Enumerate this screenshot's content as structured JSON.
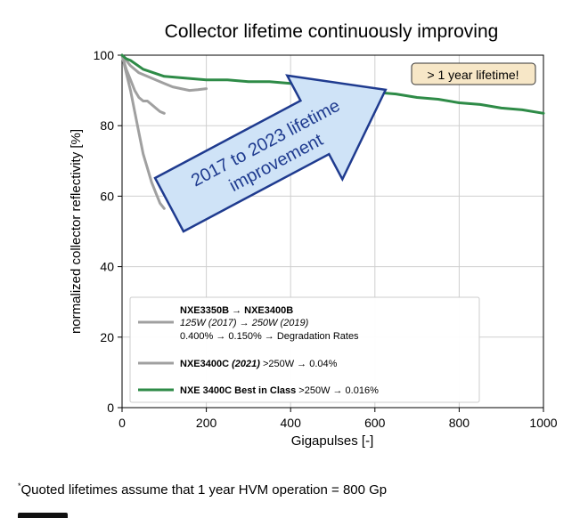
{
  "chart_data": {
    "type": "line",
    "title": "Collector lifetime continuously improving",
    "xlabel": "Gigapulses [-]",
    "ylabel": "normalized collector reflectivity [%]",
    "xlim": [
      0,
      1000
    ],
    "ylim": [
      0,
      100
    ],
    "xticks": [
      "0",
      "200",
      "400",
      "600",
      "800",
      "1000"
    ],
    "yticks": [
      "0",
      "20",
      "40",
      "60",
      "80",
      "100"
    ],
    "grid": true,
    "legend_position": "bottom-left",
    "series": [
      {
        "name": "NXE3350B → NXE3400B",
        "color": "#a0a0a0",
        "x": [
          0,
          10,
          20,
          30,
          40,
          50,
          60,
          70,
          80,
          90,
          100
        ],
        "y": [
          100,
          96,
          93,
          90,
          88,
          87,
          87,
          86,
          85,
          84,
          83.5
        ]
      },
      {
        "name": "NXE3400C",
        "color": "#a0a0a0",
        "x": [
          0,
          20,
          40,
          60,
          80,
          100,
          120,
          140,
          160,
          180,
          200
        ],
        "y": [
          100,
          97,
          95,
          94,
          93,
          92,
          91,
          90.5,
          90,
          90.2,
          90.5
        ]
      },
      {
        "name": "",
        "color": "#a0a0a0",
        "x": [
          0,
          10,
          20,
          30,
          40,
          50,
          60,
          70,
          80,
          90,
          100
        ],
        "y": [
          100,
          95,
          90,
          84,
          78,
          72,
          68,
          64,
          61,
          58,
          56.5
        ]
      },
      {
        "name": "NXE 3400C Best in Class",
        "color": "#2e8b47",
        "x": [
          0,
          10,
          20,
          50,
          100,
          150,
          200,
          250,
          300,
          350,
          400,
          450,
          500,
          550,
          600,
          650,
          700,
          750,
          800,
          850,
          900,
          950,
          1000
        ],
        "y": [
          100,
          99,
          98.5,
          96,
          94,
          93.5,
          93,
          93,
          92.5,
          92.5,
          92,
          91,
          90.5,
          90,
          89.5,
          89,
          88,
          87.5,
          86.5,
          86,
          85,
          84.5,
          83.5
        ]
      }
    ],
    "legend": [
      {
        "line1": "NXE3350B → NXE3400B",
        "line2": "125W (2017) → 250W (2019)",
        "line3": "0.400% → 0.150% → Degradation Rates"
      },
      {
        "bold": "NXE3400C",
        "italic": " (2021)",
        "rest": " >250W → 0.04%"
      },
      {
        "bold": "NXE 3400C Best in Class",
        "rest": " >250W → 0.016%"
      }
    ],
    "annotation_box": "> 1 year lifetime!",
    "arrow_text_line1": "2017 to 2023 lifetime",
    "arrow_text_line2": "improvement"
  },
  "footnote": {
    "mark": "*",
    "text": "Quoted lifetimes assume that 1 year HVM operation = 800 Gp"
  }
}
